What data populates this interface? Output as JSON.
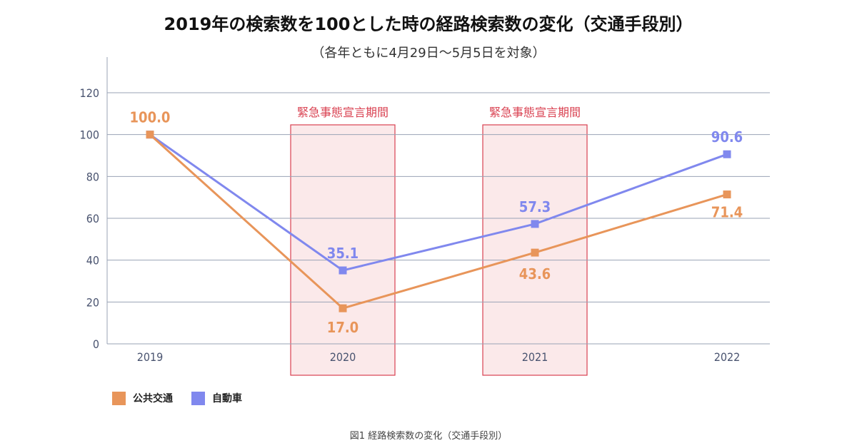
{
  "header": {
    "title": "2019年の検索数を100とした時の経路検索数の変化（交通手段別）",
    "subtitle": "（各年ともに4月29日〜5月5日を対象）"
  },
  "footer": {
    "caption": "図1 経路検索数の変化（交通手段別）"
  },
  "colors": {
    "public_transport": "#E8955A",
    "car": "#8088EE",
    "grid": "#9aa3b5",
    "axis_text": "#4a5470",
    "emergency_text": "#D94050",
    "emergency_fill": "#FBE9EA",
    "emergency_border": "#D94050"
  },
  "chart_data": {
    "type": "line",
    "title": "2019年の検索数を100とした時の経路検索数の変化（交通手段別）",
    "subtitle": "（各年ともに4月29日〜5月5日を対象）",
    "categories": [
      "2019",
      "2020",
      "2021",
      "2022"
    ],
    "ylim": [
      0,
      120
    ],
    "yticks": [
      "0",
      "20",
      "40",
      "60",
      "80",
      "100",
      "120"
    ],
    "grid": true,
    "legend_position": "bottom-left",
    "series": [
      {
        "name": "公共交通",
        "values": [
          100.0,
          17.0,
          43.6,
          71.4
        ],
        "labels": [
          "100.0",
          "17.0",
          "43.6",
          "71.4"
        ]
      },
      {
        "name": "自動車",
        "values": [
          100.0,
          35.1,
          57.3,
          90.6
        ],
        "labels": [
          "",
          "35.1",
          "57.3",
          "90.6"
        ]
      }
    ],
    "annotations": [
      {
        "label": "緊急事態宣言期間",
        "category": "2020"
      },
      {
        "label": "緊急事態宣言期間",
        "category": "2021"
      }
    ]
  }
}
